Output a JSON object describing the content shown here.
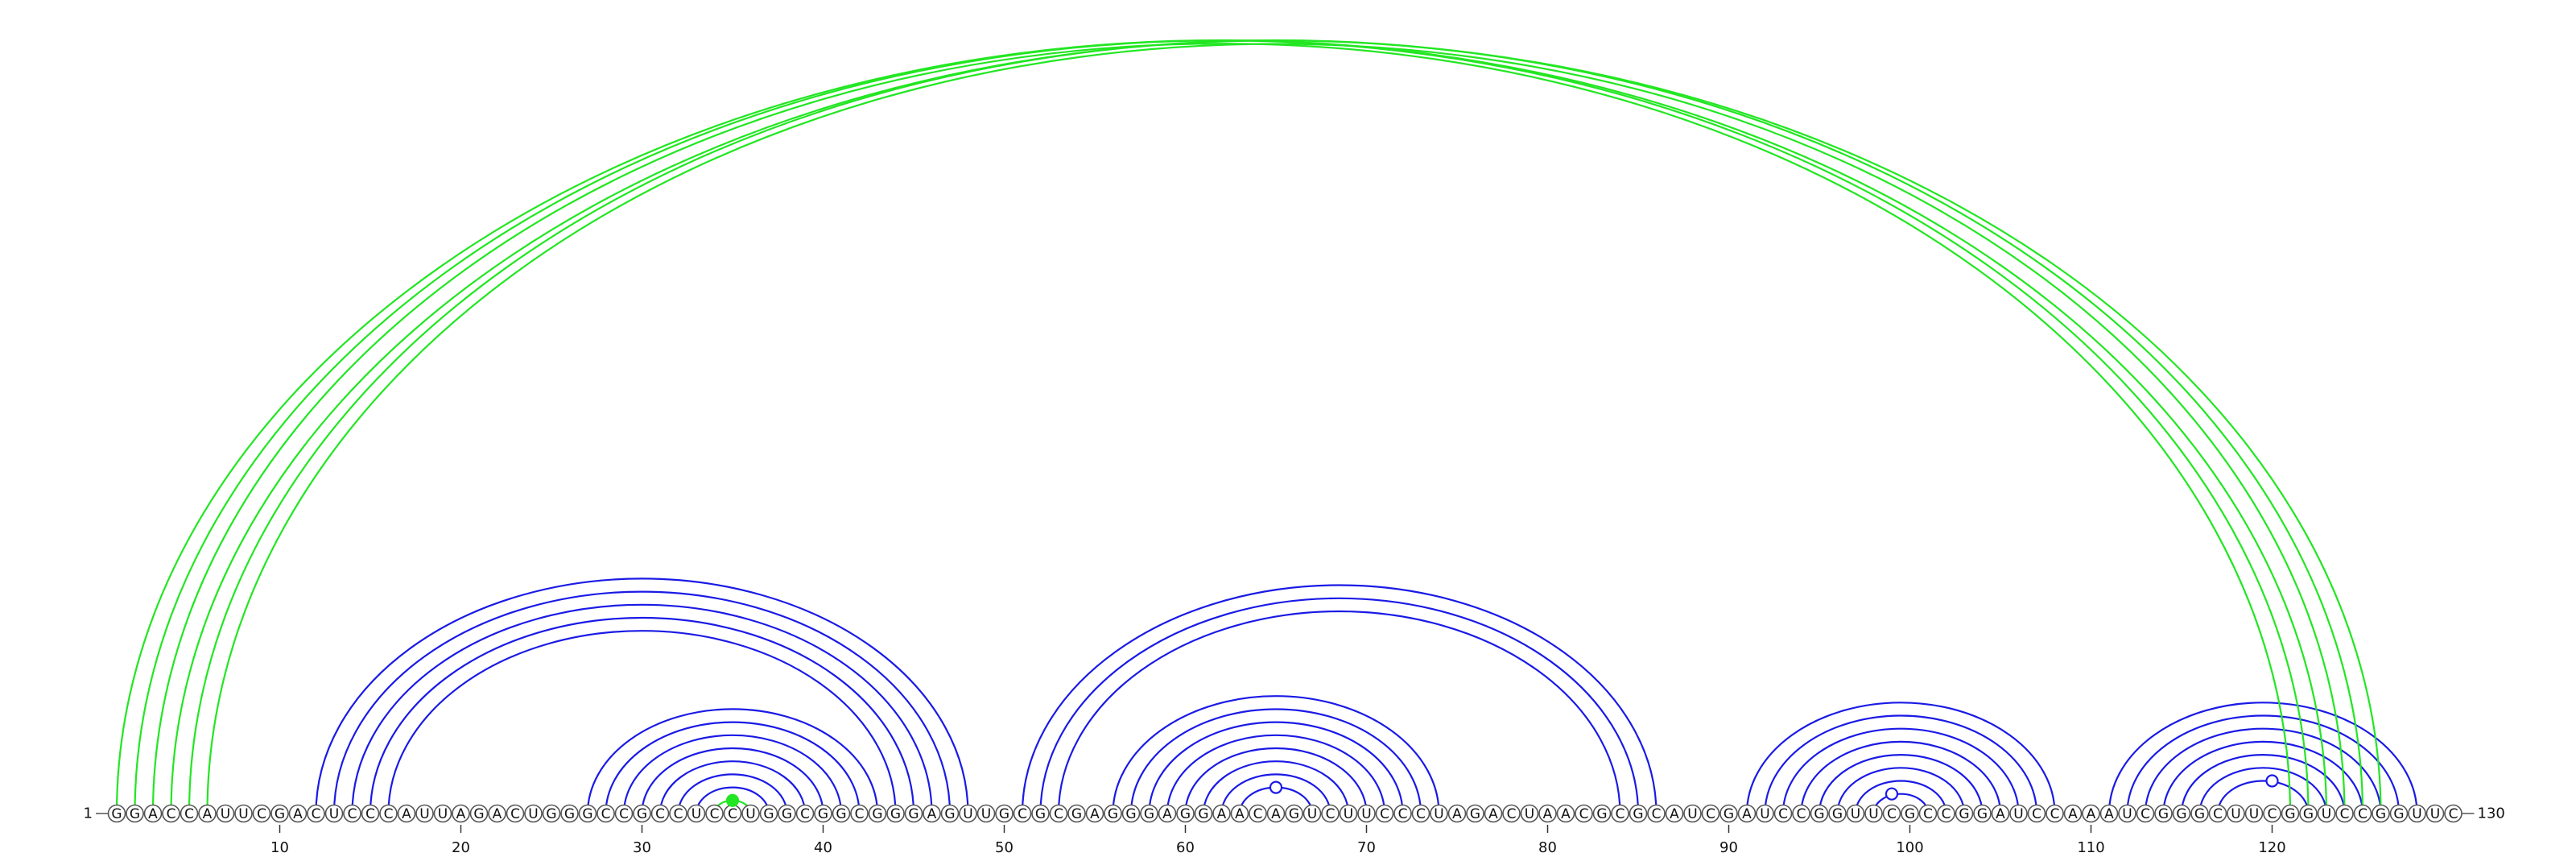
{
  "sequence": "GGACCAUUCGACUCCCAUUAGACUGGGCCGCCUCCUGGCGGCGGGAGUUGCGCGAGGGAGGAACAGUCUUCCCUAGACUAACGCGCAUCGAUCCGGUUCGCCGGAUCCAAAUCGGGCUUCGGUCCGGUUC",
  "start_label": "1",
  "end_label": "130",
  "axis_ticks": [
    10,
    20,
    30,
    40,
    50,
    60,
    70,
    80,
    90,
    100,
    110,
    120
  ],
  "colors": {
    "nested_arcs": "#1a1ae6",
    "pseudoknot_arcs": "#22e622"
  },
  "arc_groups": [
    {
      "class": "nested-arcs",
      "pairs": [
        [
          12,
          48
        ],
        [
          13,
          47
        ],
        [
          14,
          46
        ],
        [
          15,
          45
        ],
        [
          16,
          44
        ]
      ]
    },
    {
      "class": "nested-arcs",
      "pairs": [
        [
          27,
          43
        ],
        [
          28,
          42
        ],
        [
          29,
          41
        ],
        [
          30,
          40
        ],
        [
          31,
          39
        ],
        [
          32,
          38
        ],
        [
          33,
          37
        ]
      ]
    },
    {
      "class": "nested-arcs",
      "pairs": [
        [
          51,
          86
        ],
        [
          52,
          85
        ],
        [
          53,
          84
        ]
      ]
    },
    {
      "class": "nested-arcs",
      "pairs": [
        [
          56,
          74
        ],
        [
          57,
          73
        ],
        [
          58,
          72
        ],
        [
          59,
          71
        ],
        [
          60,
          70
        ],
        [
          61,
          69
        ],
        [
          62,
          68
        ],
        [
          63,
          67
        ]
      ]
    },
    {
      "class": "nested-arcs",
      "pairs": [
        [
          91,
          108
        ],
        [
          92,
          107
        ],
        [
          93,
          106
        ],
        [
          94,
          105
        ],
        [
          95,
          104
        ],
        [
          96,
          103
        ],
        [
          97,
          102
        ],
        [
          98,
          101
        ]
      ]
    },
    {
      "class": "nested-arcs",
      "pairs": [
        [
          111,
          128
        ],
        [
          112,
          127
        ],
        [
          113,
          126
        ],
        [
          114,
          125
        ],
        [
          115,
          124
        ],
        [
          116,
          123
        ],
        [
          117,
          122
        ]
      ]
    },
    {
      "class": "pseudoknot-arcs",
      "pairs": [
        [
          1,
          123
        ],
        [
          2,
          122
        ],
        [
          3,
          121
        ],
        [
          4,
          126
        ],
        [
          5,
          125
        ],
        [
          6,
          124
        ]
      ]
    },
    {
      "class": "pseudoknot-arcs",
      "pairs": [
        [
          34,
          36
        ]
      ]
    }
  ],
  "markers": [
    {
      "position": 35,
      "filled": true,
      "color": "#22e622"
    },
    {
      "position": 65,
      "filled": false,
      "color": "#1a1ae6"
    },
    {
      "position": 99,
      "filled": false,
      "color": "#1a1ae6"
    },
    {
      "position": 120,
      "filled": false,
      "color": "#1a1ae6"
    }
  ]
}
